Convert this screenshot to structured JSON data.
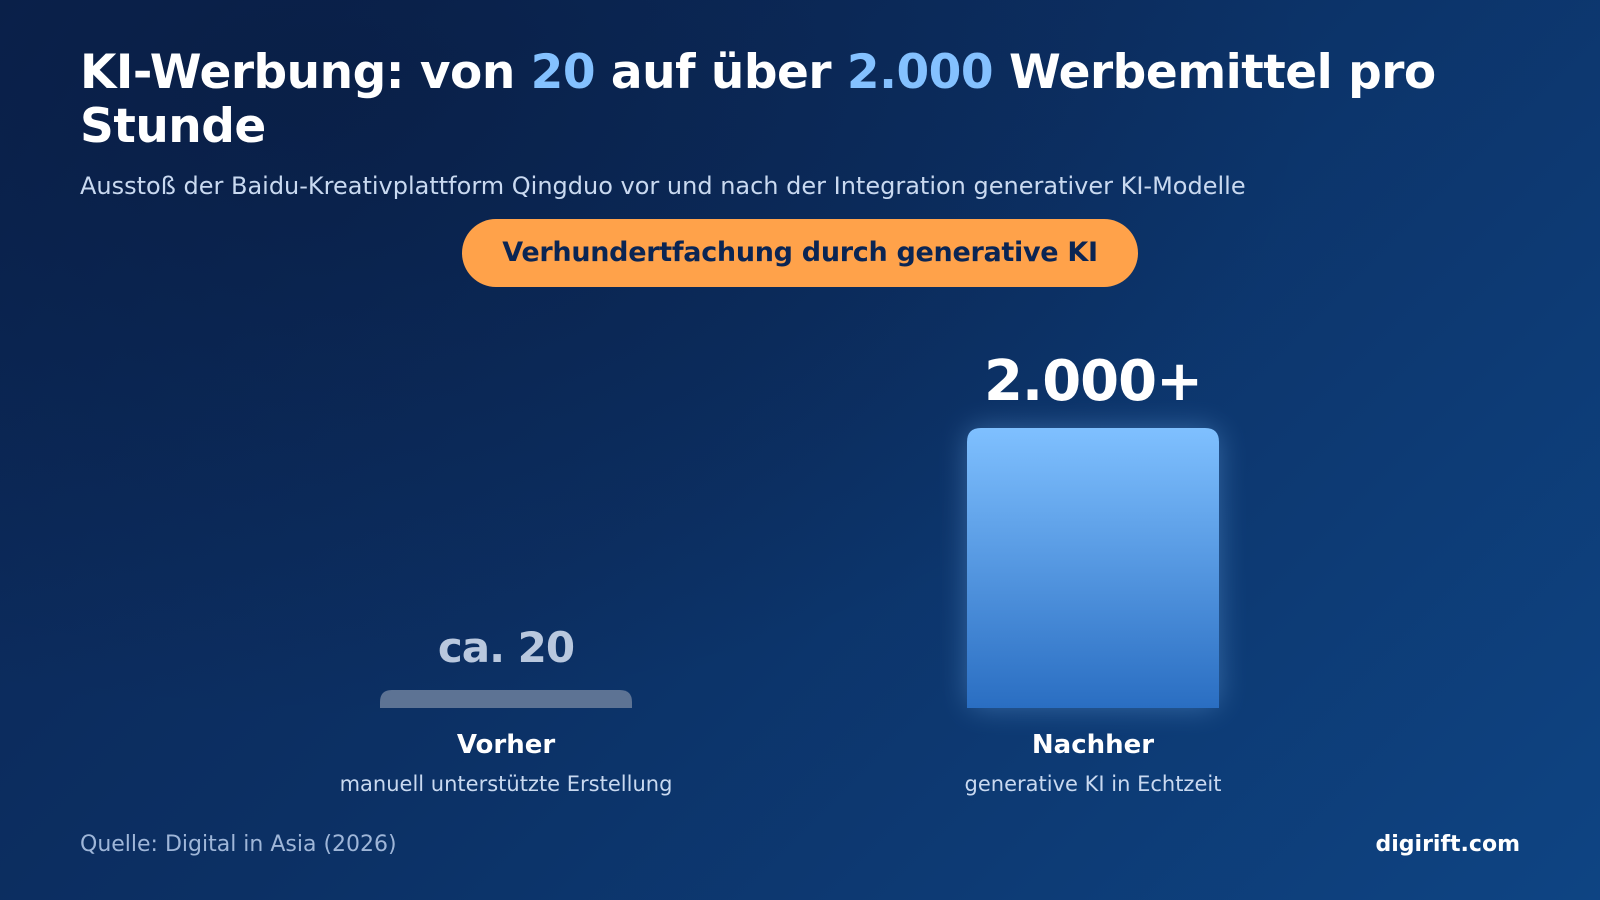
{
  "title": {
    "part1": "KI-Werbung: von ",
    "highlight1": "20",
    "part2": " auf über ",
    "highlight2": "2.000",
    "part3": " Werbemittel pro Stunde"
  },
  "subtitle": "Ausstoß der Baidu-Kreativplattform Qingduo vor und nach der Integration generativer KI-Modelle",
  "badge": "Verhundertfachung durch generative KI",
  "footer": {
    "source": "Quelle: Digital in Asia (2026)",
    "brand": "digirift.com"
  },
  "colors": {
    "background_start": "#0b2553",
    "background_end": "#0e4483",
    "title_highlight": "#84c1ff",
    "badge_background": "#ffa24a",
    "badge_text": "#0b2553",
    "bar_before": "#5d7394",
    "bar_after_top": "#7fc0ff",
    "bar_after_bottom": "#2a6ec2"
  },
  "chart_data": {
    "type": "bar",
    "categories": [
      "Vorher",
      "Nachher"
    ],
    "category_descriptions": [
      "manuell unterstützte Erstellung",
      "generative KI in Echtzeit"
    ],
    "values": [
      20,
      2000
    ],
    "data_labels": [
      "ca. 20",
      "2.000+"
    ],
    "grid": false,
    "legend": "none"
  }
}
